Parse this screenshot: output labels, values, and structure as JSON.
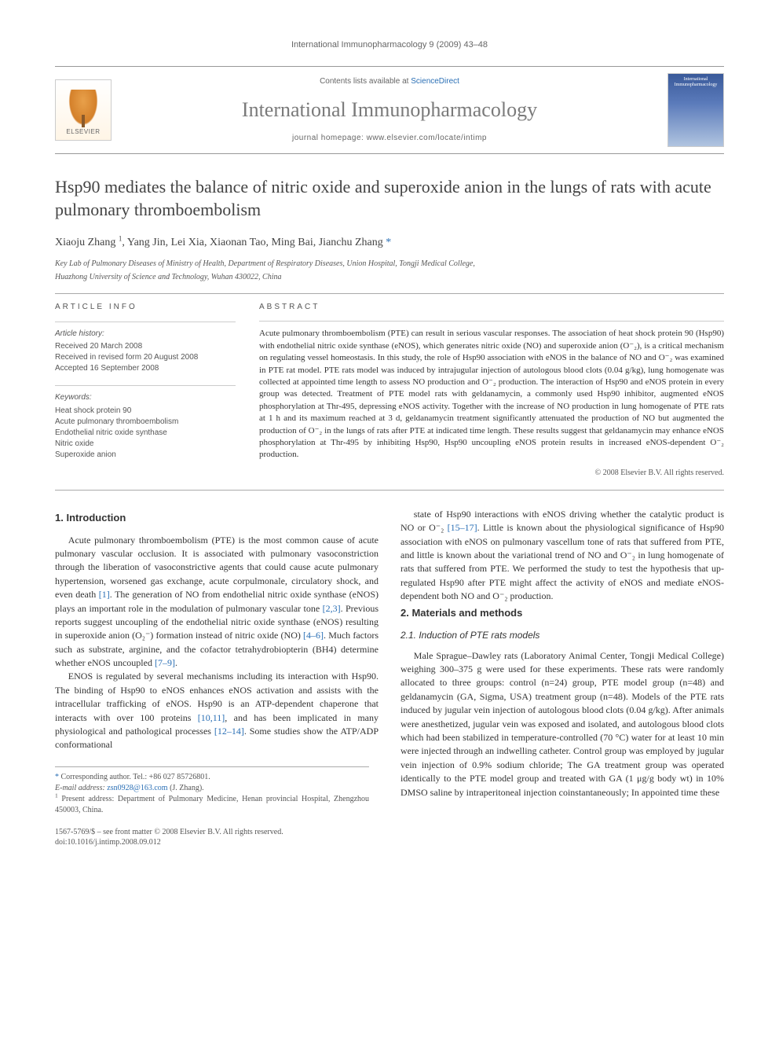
{
  "running_head": "International Immunopharmacology 9 (2009) 43–48",
  "masthead": {
    "publisher": "ELSEVIER",
    "contents_prefix": "Contents lists available at ",
    "contents_link": "ScienceDirect",
    "journal": "International Immunopharmacology",
    "homepage_label": "journal homepage: ",
    "homepage_url": "www.elsevier.com/locate/intimp",
    "cover_text": "International Immunopharmacology"
  },
  "title": "Hsp90 mediates the balance of nitric oxide and superoxide anion in the lungs of rats with acute pulmonary thromboembolism",
  "authors_html": "Xiaoju Zhang <sup>1</sup>, Yang Jin, Lei Xia, Xiaonan Tao, Ming Bai, Jianchu Zhang <span class='corr-star'>*</span>",
  "affiliations": [
    "Key Lab of Pulmonary Diseases of Ministry of Health, Department of Respiratory Diseases, Union Hospital, Tongji Medical College,",
    "Huazhong University of Science and Technology, Wuhan 430022, China"
  ],
  "info": {
    "label": "ARTICLE INFO",
    "history_head": "Article history:",
    "history": [
      "Received 20 March 2008",
      "Received in revised form 20 August 2008",
      "Accepted 16 September 2008"
    ],
    "keywords_head": "Keywords:",
    "keywords": [
      "Heat shock protein 90",
      "Acute pulmonary thromboembolism",
      "Endothelial nitric oxide synthase",
      "Nitric oxide",
      "Superoxide anion"
    ]
  },
  "abstract": {
    "label": "ABSTRACT",
    "text": "Acute pulmonary thromboembolism (PTE) can result in serious vascular responses. The association of heat shock protein 90 (Hsp90) with endothelial nitric oxide synthase (eNOS), which generates nitric oxide (NO) and superoxide anion (O⁻₂), is a critical mechanism on regulating vessel homeostasis. In this study, the role of Hsp90 association with eNOS in the balance of NO and O⁻₂ was examined in PTE rat model. PTE rats model was induced by intrajugular injection of autologous blood clots (0.04 g/kg), lung homogenate was collected at appointed time length to assess NO production and O⁻₂ production. The interaction of Hsp90 and eNOS protein in every group was detected. Treatment of PTE model rats with geldanamycin, a commonly used Hsp90 inhibitor, augmented eNOS phosphorylation at Thr-495, depressing eNOS activity. Together with the increase of NO production in lung homogenate of PTE rats at 1 h and its maximum reached at 3 d, geldanamycin treatment significantly attenuated the production of NO but augmented the production of O⁻₂ in the lungs of rats after PTE at indicated time length. These results suggest that geldanamycin may enhance eNOS phosphorylation at Thr-495 by inhibiting Hsp90, Hsp90 uncoupling eNOS protein results in increased eNOS-dependent O⁻₂ production.",
    "copyright": "© 2008 Elsevier B.V. All rights reserved."
  },
  "body": {
    "intro_head": "1. Introduction",
    "intro_p1": "Acute pulmonary thromboembolism (PTE) is the most common cause of acute pulmonary vascular occlusion. It is associated with pulmonary vasoconstriction through the liberation of vasoconstrictive agents that could cause acute pulmonary hypertension, worsened gas exchange, acute corpulmonale, circulatory shock, and even death <span class='cite'>[1]</span>. The generation of NO from endothelial nitric oxide synthase (eNOS) plays an important role in the modulation of pulmonary vascular tone <span class='cite'>[2,3]</span>. Previous reports suggest uncoupling of the endothelial nitric oxide synthase (eNOS) resulting in superoxide anion (O₂⁻) formation instead of nitric oxide (NO) <span class='cite'>[4–6]</span>. Much factors such as substrate, arginine, and the cofactor tetrahydrobiopterin (BH4) determine whether eNOS uncoupled <span class='cite'>[7–9]</span>.",
    "intro_p2": "ENOS is regulated by several mechanisms including its interaction with Hsp90. The binding of Hsp90 to eNOS enhances eNOS activation and assists with the intracellular trafficking of eNOS. Hsp90 is an ATP-dependent chaperone that interacts with over 100 proteins <span class='cite'>[10,11]</span>, and has been implicated in many physiological and pathological processes <span class='cite'>[12–14]</span>. Some studies show the ATP/ADP conformational",
    "intro_p3": "state of Hsp90 interactions with eNOS driving whether the catalytic product is NO or O⁻₂ <span class='cite'>[15–17]</span>. Little is known about the physiological significance of Hsp90 association with eNOS on pulmonary vascellum tone of rats that suffered from PTE, and little is known about the variational trend of NO and O⁻₂ in lung homogenate of rats that suffered from PTE. We performed the study to test the hypothesis that up-regulated Hsp90 after PTE might affect the activity of eNOS and mediate eNOS-dependent both NO and O⁻₂ production.",
    "methods_head": "2. Materials and methods",
    "methods_sub": "2.1. Induction of PTE rats models",
    "methods_p1": "Male Sprague–Dawley rats (Laboratory Animal Center, Tongji Medical College) weighing 300–375 g were used for these experiments. These rats were randomly allocated to three groups: control (n=24) group, PTE model group (n=48) and geldanamycin (GA, Sigma, USA) treatment group (n=48). Models of the PTE rats induced by jugular vein injection of autologous blood clots (0.04 g/kg). After animals were anesthetized, jugular vein was exposed and isolated, and autologous blood clots which had been stabilized in temperature-controlled (70 °C) water for at least 10 min were injected through an indwelling catheter. Control group was employed by jugular vein injection of 0.9% sodium chloride; The GA treatment group was operated identically to the PTE model group and treated with GA (1 μg/g body wt) in 10% DMSO saline by intraperitoneal injection coinstantaneously; In appointed time these"
  },
  "footnotes": {
    "corr": "Corresponding author. Tel.: +86 027 85726801.",
    "email_label": "E-mail address:",
    "email": "zsn0928@163.com",
    "email_who": "(J. Zhang).",
    "note1": "Present address: Department of Pulmonary Medicine, Henan provincial Hospital, Zhengzhou 450003, China."
  },
  "bottom": {
    "left1": "1567-5769/$ – see front matter © 2008 Elsevier B.V. All rights reserved.",
    "left2": "doi:10.1016/j.intimp.2008.09.012"
  },
  "colors": {
    "link": "#2a6fb5",
    "text": "#333333",
    "muted": "#666666",
    "rule": "#aaaaaa"
  },
  "typography": {
    "body_pt": 12,
    "title_pt": 22,
    "journal_pt": 26,
    "small_pt": 10
  }
}
